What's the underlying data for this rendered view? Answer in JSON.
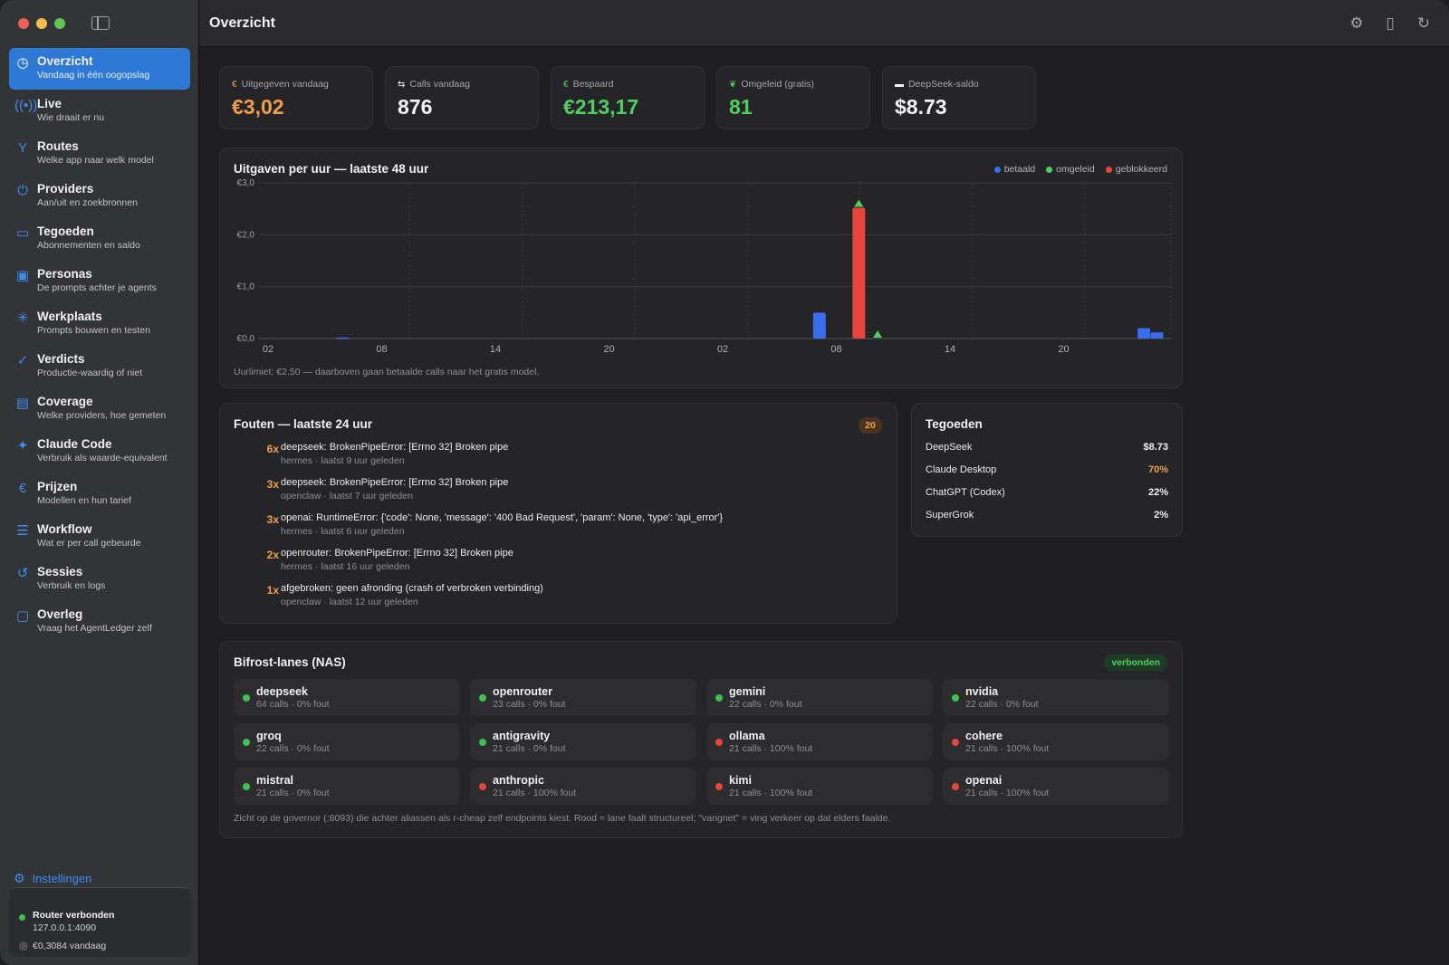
{
  "window": {
    "title": "Overzicht"
  },
  "sidebar": {
    "items": [
      {
        "label": "Overzicht",
        "sub": "Vandaag in één oogopslag",
        "icon": "clock-icon"
      },
      {
        "label": "Live",
        "sub": "Wie draait er nu",
        "icon": "broadcast-icon"
      },
      {
        "label": "Routes",
        "sub": "Welke app naar welk model",
        "icon": "fork-icon"
      },
      {
        "label": "Providers",
        "sub": "Aan/uit en zoekbronnen",
        "icon": "power-icon"
      },
      {
        "label": "Tegoeden",
        "sub": "Abonnementen en saldo",
        "icon": "credit-card-icon"
      },
      {
        "label": "Personas",
        "sub": "De prompts achter je agents",
        "icon": "person-card-icon"
      },
      {
        "label": "Werkplaats",
        "sub": "Prompts bouwen en testen",
        "icon": "sparkle-burst-icon"
      },
      {
        "label": "Verdicts",
        "sub": "Productie-waardig of niet",
        "icon": "check-seal-icon"
      },
      {
        "label": "Coverage",
        "sub": "Welke providers, hoe gemeten",
        "icon": "document-icon"
      },
      {
        "label": "Claude Code",
        "sub": "Verbruik als waarde-equivalent",
        "icon": "sparkles-icon"
      },
      {
        "label": "Prijzen",
        "sub": "Modellen en hun tarief",
        "icon": "euro-icon"
      },
      {
        "label": "Workflow",
        "sub": "Wat er per call gebeurde",
        "icon": "list-icon"
      },
      {
        "label": "Sessies",
        "sub": "Verbruik en logs",
        "icon": "history-icon"
      },
      {
        "label": "Overleg",
        "sub": "Vraag het AgentLedger zelf",
        "icon": "chat-bubbles-icon"
      }
    ],
    "settings_label": "Instellingen",
    "router": {
      "status": "Router verbonden",
      "address": "127.0.0.1:4090",
      "today": "€0,3084 vandaag"
    }
  },
  "stats": [
    {
      "label": "Uitgegeven vandaag",
      "value": "€3,02",
      "color": "#f0a04b",
      "icon": "euro-icon"
    },
    {
      "label": "Calls vandaag",
      "value": "876",
      "color": "#f3f3f5",
      "icon": "swap-arrows-icon"
    },
    {
      "label": "Bespaard",
      "value": "€213,17",
      "color": "#4fcf62",
      "icon": "euro-icon"
    },
    {
      "label": "Omgeleid (gratis)",
      "value": "81",
      "color": "#4fcf62",
      "icon": "leaf-icon"
    },
    {
      "label": "DeepSeek-saldo",
      "value": "$8.73",
      "color": "#f3f3f5",
      "icon": "card-icon"
    }
  ],
  "chart": {
    "title": "Uitgaven per uur — laatste 48 uur",
    "note": "Uurlimiet: €2.50 — daarboven gaan betaalde calls naar het gratis model.",
    "legend": [
      {
        "name": "betaald",
        "color": "#3a6ef0"
      },
      {
        "name": "omgeleid",
        "color": "#4fcf62"
      },
      {
        "name": "geblokkeerd",
        "color": "#e8453a"
      }
    ]
  },
  "chart_data": {
    "type": "bar",
    "title": "Uitgaven per uur — laatste 48 uur",
    "x_tick_labels": [
      "02",
      "08",
      "14",
      "20",
      "02",
      "08",
      "14",
      "20"
    ],
    "y_tick_labels": [
      "€0,0",
      "€1,0",
      "€2,0",
      "€3,0"
    ],
    "ylim": [
      0,
      3
    ],
    "grid": true,
    "legend_position": "top-right",
    "series": [
      {
        "name": "betaald",
        "color": "#3a6ef0",
        "points": [
          {
            "hour": 4.0,
            "value": 0.02
          },
          {
            "hour": 29.4,
            "value": 0.5
          },
          {
            "hour": 46.7,
            "value": 0.2
          },
          {
            "hour": 47.4,
            "value": 0.12
          }
        ]
      },
      {
        "name": "geblokkeerd",
        "color": "#e8453a",
        "points": [
          {
            "hour": 31.5,
            "value": 2.52
          }
        ]
      },
      {
        "name": "omgeleid",
        "color": "#4fcf62",
        "markers": [
          {
            "hour": 31.5,
            "value": 2.52
          },
          {
            "hour": 32.5,
            "value": 0.0
          }
        ]
      }
    ]
  },
  "errors": {
    "title": "Fouten — laatste 24 uur",
    "badge": "20",
    "items": [
      {
        "count": "6x",
        "message": "deepseek: BrokenPipeError: [Errno 32] Broken pipe",
        "meta": "hermes · laatst 9 uur geleden"
      },
      {
        "count": "3x",
        "message": "deepseek: BrokenPipeError: [Errno 32] Broken pipe",
        "meta": "openclaw · laatst 7 uur geleden"
      },
      {
        "count": "3x",
        "message": "openai: RuntimeError: {'code': None, 'message': '400 Bad Request', 'param': None, 'type': 'api_error'}",
        "meta": "hermes · laatst 6 uur geleden"
      },
      {
        "count": "2x",
        "message": "openrouter: BrokenPipeError: [Errno 32] Broken pipe",
        "meta": "hermes · laatst 16 uur geleden"
      },
      {
        "count": "1x",
        "message": "afgebroken: geen afronding (crash of verbroken verbinding)",
        "meta": "openclaw · laatst 12 uur geleden"
      }
    ]
  },
  "credits": {
    "title": "Tegoeden",
    "items": [
      {
        "name": "DeepSeek",
        "value": "$8.73",
        "color": "#f1f1f3"
      },
      {
        "name": "Claude Desktop",
        "value": "70%",
        "color": "#f0a04b"
      },
      {
        "name": "ChatGPT (Codex)",
        "value": "22%",
        "color": "#f1f1f3"
      },
      {
        "name": "SuperGrok",
        "value": "2%",
        "color": "#f1f1f3"
      }
    ]
  },
  "lanes": {
    "title": "Bifrost-lanes (NAS)",
    "status": "verbonden",
    "note": "Zicht op de governor (:8093) die achter aliassen als r-cheap zelf endpoints kiest. Rood = lane faalt structureel; \"vangnet\" = ving verkeer op dat elders faalde.",
    "items": [
      {
        "name": "deepseek",
        "stats": "64 calls · 0% fout",
        "color": "#3ec24f"
      },
      {
        "name": "openrouter",
        "stats": "23 calls · 0% fout",
        "color": "#3ec24f"
      },
      {
        "name": "gemini",
        "stats": "22 calls · 0% fout",
        "color": "#3ec24f"
      },
      {
        "name": "nvidia",
        "stats": "22 calls · 0% fout",
        "color": "#3ec24f"
      },
      {
        "name": "groq",
        "stats": "22 calls · 0% fout",
        "color": "#3ec24f"
      },
      {
        "name": "antigravity",
        "stats": "21 calls · 0% fout",
        "color": "#3ec24f"
      },
      {
        "name": "ollama",
        "stats": "21 calls · 100% fout",
        "color": "#e8453a"
      },
      {
        "name": "cohere",
        "stats": "21 calls · 100% fout",
        "color": "#e8453a"
      },
      {
        "name": "mistral",
        "stats": "21 calls · 0% fout",
        "color": "#3ec24f"
      },
      {
        "name": "anthropic",
        "stats": "21 calls · 100% fout",
        "color": "#e8453a"
      },
      {
        "name": "kimi",
        "stats": "21 calls · 100% fout",
        "color": "#e8453a"
      },
      {
        "name": "openai",
        "stats": "21 calls · 100% fout",
        "color": "#e8453a"
      }
    ]
  }
}
